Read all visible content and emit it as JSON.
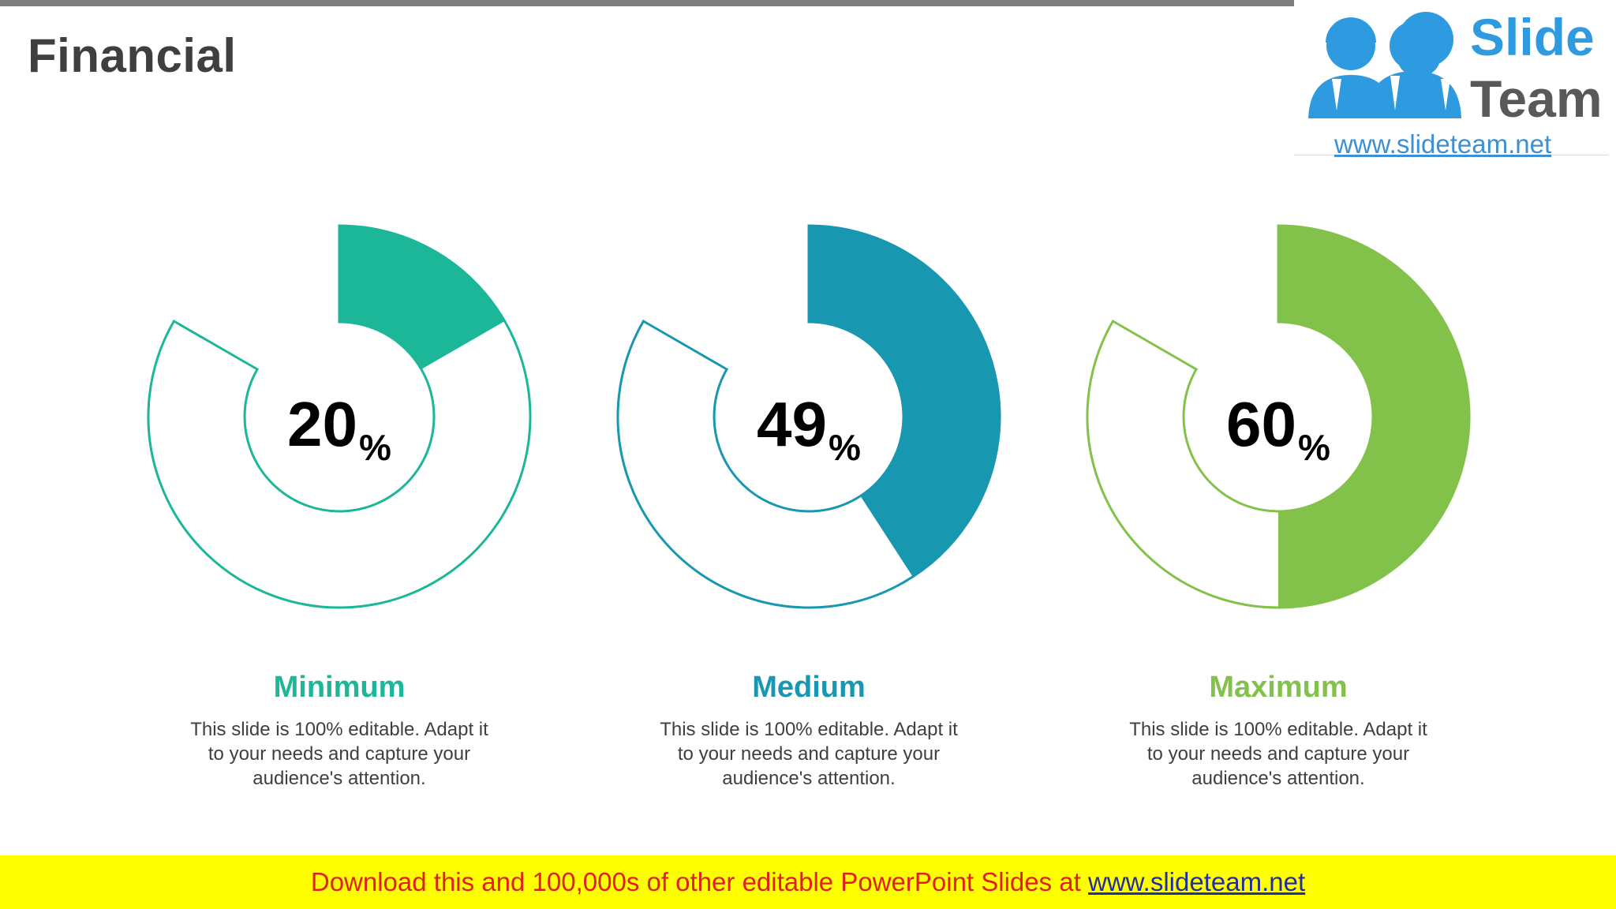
{
  "slide": {
    "title": "Financial"
  },
  "logo": {
    "name_line1": "Slide",
    "name_line2": "Team",
    "url": "www.slideteam.net"
  },
  "gauges": [
    {
      "value": "20",
      "unit": "%",
      "fraction": 0.2,
      "label": "Minimum",
      "description": "This slide is 100% editable. Adapt it to your needs and capture your audience's attention.",
      "color": "#1bb798"
    },
    {
      "value": "49",
      "unit": "%",
      "fraction": 0.49,
      "label": "Medium",
      "description": "This slide is 100% editable. Adapt it to your needs and capture your audience's attention.",
      "color": "#1897b0"
    },
    {
      "value": "60",
      "unit": "%",
      "fraction": 0.6,
      "label": "Maximum",
      "description": "This slide is 100% editable. Adapt it to your needs and capture your audience's attention.",
      "color": "#82c14a"
    }
  ],
  "footer": {
    "text": "Download this and 100,000s of other editable PowerPoint Slides at ",
    "link": "www.slideteam.net"
  }
}
